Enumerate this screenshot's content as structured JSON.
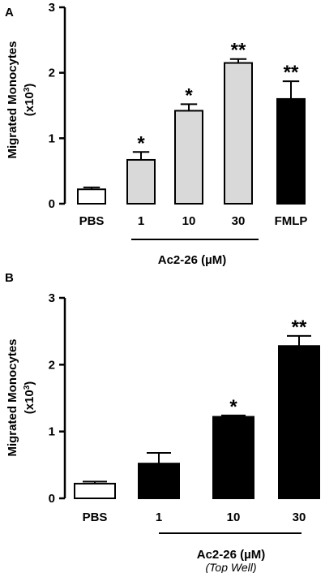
{
  "chart_data": [
    {
      "panel": "A",
      "type": "bar",
      "ylabel_line1": "Migrated Monocytes",
      "ylabel_line2": "(x10",
      "ylabel_sup": "3",
      "ylabel_close": ")",
      "ylim": [
        0,
        3
      ],
      "yticks": [
        "0",
        "1",
        "2",
        "3"
      ],
      "categories": [
        "PBS",
        "1",
        "10",
        "30",
        "FMLP"
      ],
      "values": [
        0.22,
        0.67,
        1.42,
        2.15,
        1.6
      ],
      "errors": [
        0.03,
        0.12,
        0.1,
        0.06,
        0.27
      ],
      "significance": [
        "",
        "*",
        "*",
        "**",
        "**"
      ],
      "bar_colors": [
        "#ffffff",
        "#d9d9d9",
        "#d9d9d9",
        "#d9d9d9",
        "#000000"
      ],
      "group_label": "Ac2-26 (µM)",
      "group_sublabel": ""
    },
    {
      "panel": "B",
      "type": "bar",
      "ylabel_line1": "Migrated Monocytes",
      "ylabel_line2": "(x10",
      "ylabel_sup": "3",
      "ylabel_close": ")",
      "ylim": [
        0,
        3
      ],
      "yticks": [
        "0",
        "1",
        "2",
        "3"
      ],
      "categories": [
        "PBS",
        "1",
        "10",
        "30"
      ],
      "values": [
        0.22,
        0.52,
        1.22,
        2.28
      ],
      "errors": [
        0.03,
        0.16,
        0.02,
        0.15
      ],
      "significance": [
        "",
        "",
        "*",
        "**"
      ],
      "bar_colors": [
        "#ffffff",
        "#000000",
        "#000000",
        "#000000"
      ],
      "group_label": "Ac2-26 (µM)",
      "group_sublabel": "(Top Well)"
    }
  ]
}
